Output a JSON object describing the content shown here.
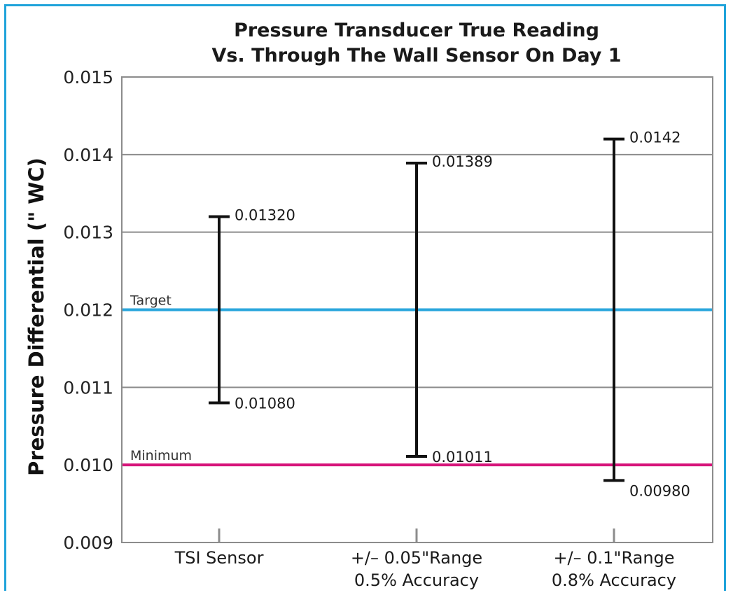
{
  "chart_data": {
    "type": "range",
    "title_lines": [
      "Pressure Transducer True Reading",
      "Vs. Through The  Wall  Sensor On Day 1"
    ],
    "ylabel": "Pressure Differential (\" WC)",
    "xlabel": "",
    "ylim": [
      0.009,
      0.015
    ],
    "yticks": [
      {
        "value": 0.009,
        "label": "0.009"
      },
      {
        "value": 0.01,
        "label": "0.010"
      },
      {
        "value": 0.011,
        "label": "0.011"
      },
      {
        "value": 0.012,
        "label": "0.012"
      },
      {
        "value": 0.013,
        "label": "0.013"
      },
      {
        "value": 0.014,
        "label": "0.014"
      },
      {
        "value": 0.015,
        "label": "0.015"
      }
    ],
    "grid": true,
    "categories": [
      {
        "lines": [
          "TSI Sensor"
        ]
      },
      {
        "lines": [
          "+/– 0.05\"Range",
          "0.5% Accuracy"
        ]
      },
      {
        "lines": [
          "+/– 0.1\"Range",
          "0.8% Accuracy"
        ]
      }
    ],
    "ranges": [
      {
        "low": 0.0108,
        "high": 0.0132,
        "low_label": "0.01080",
        "high_label": "0.01320"
      },
      {
        "low": 0.01011,
        "high": 0.01389,
        "low_label": "0.01011",
        "high_label": "0.01389"
      },
      {
        "low": 0.0098,
        "high": 0.0142,
        "low_label": "0.00980",
        "high_label": "0.0142"
      }
    ],
    "reference_lines": [
      {
        "name": "Target",
        "value": 0.012,
        "color": "#2aa6dc"
      },
      {
        "name": "Minimum",
        "value": 0.01,
        "color": "#d6157a"
      }
    ],
    "colors": {
      "frame": "#1fa3da",
      "grid": "#8c8c8c",
      "bar": "#111111"
    }
  }
}
